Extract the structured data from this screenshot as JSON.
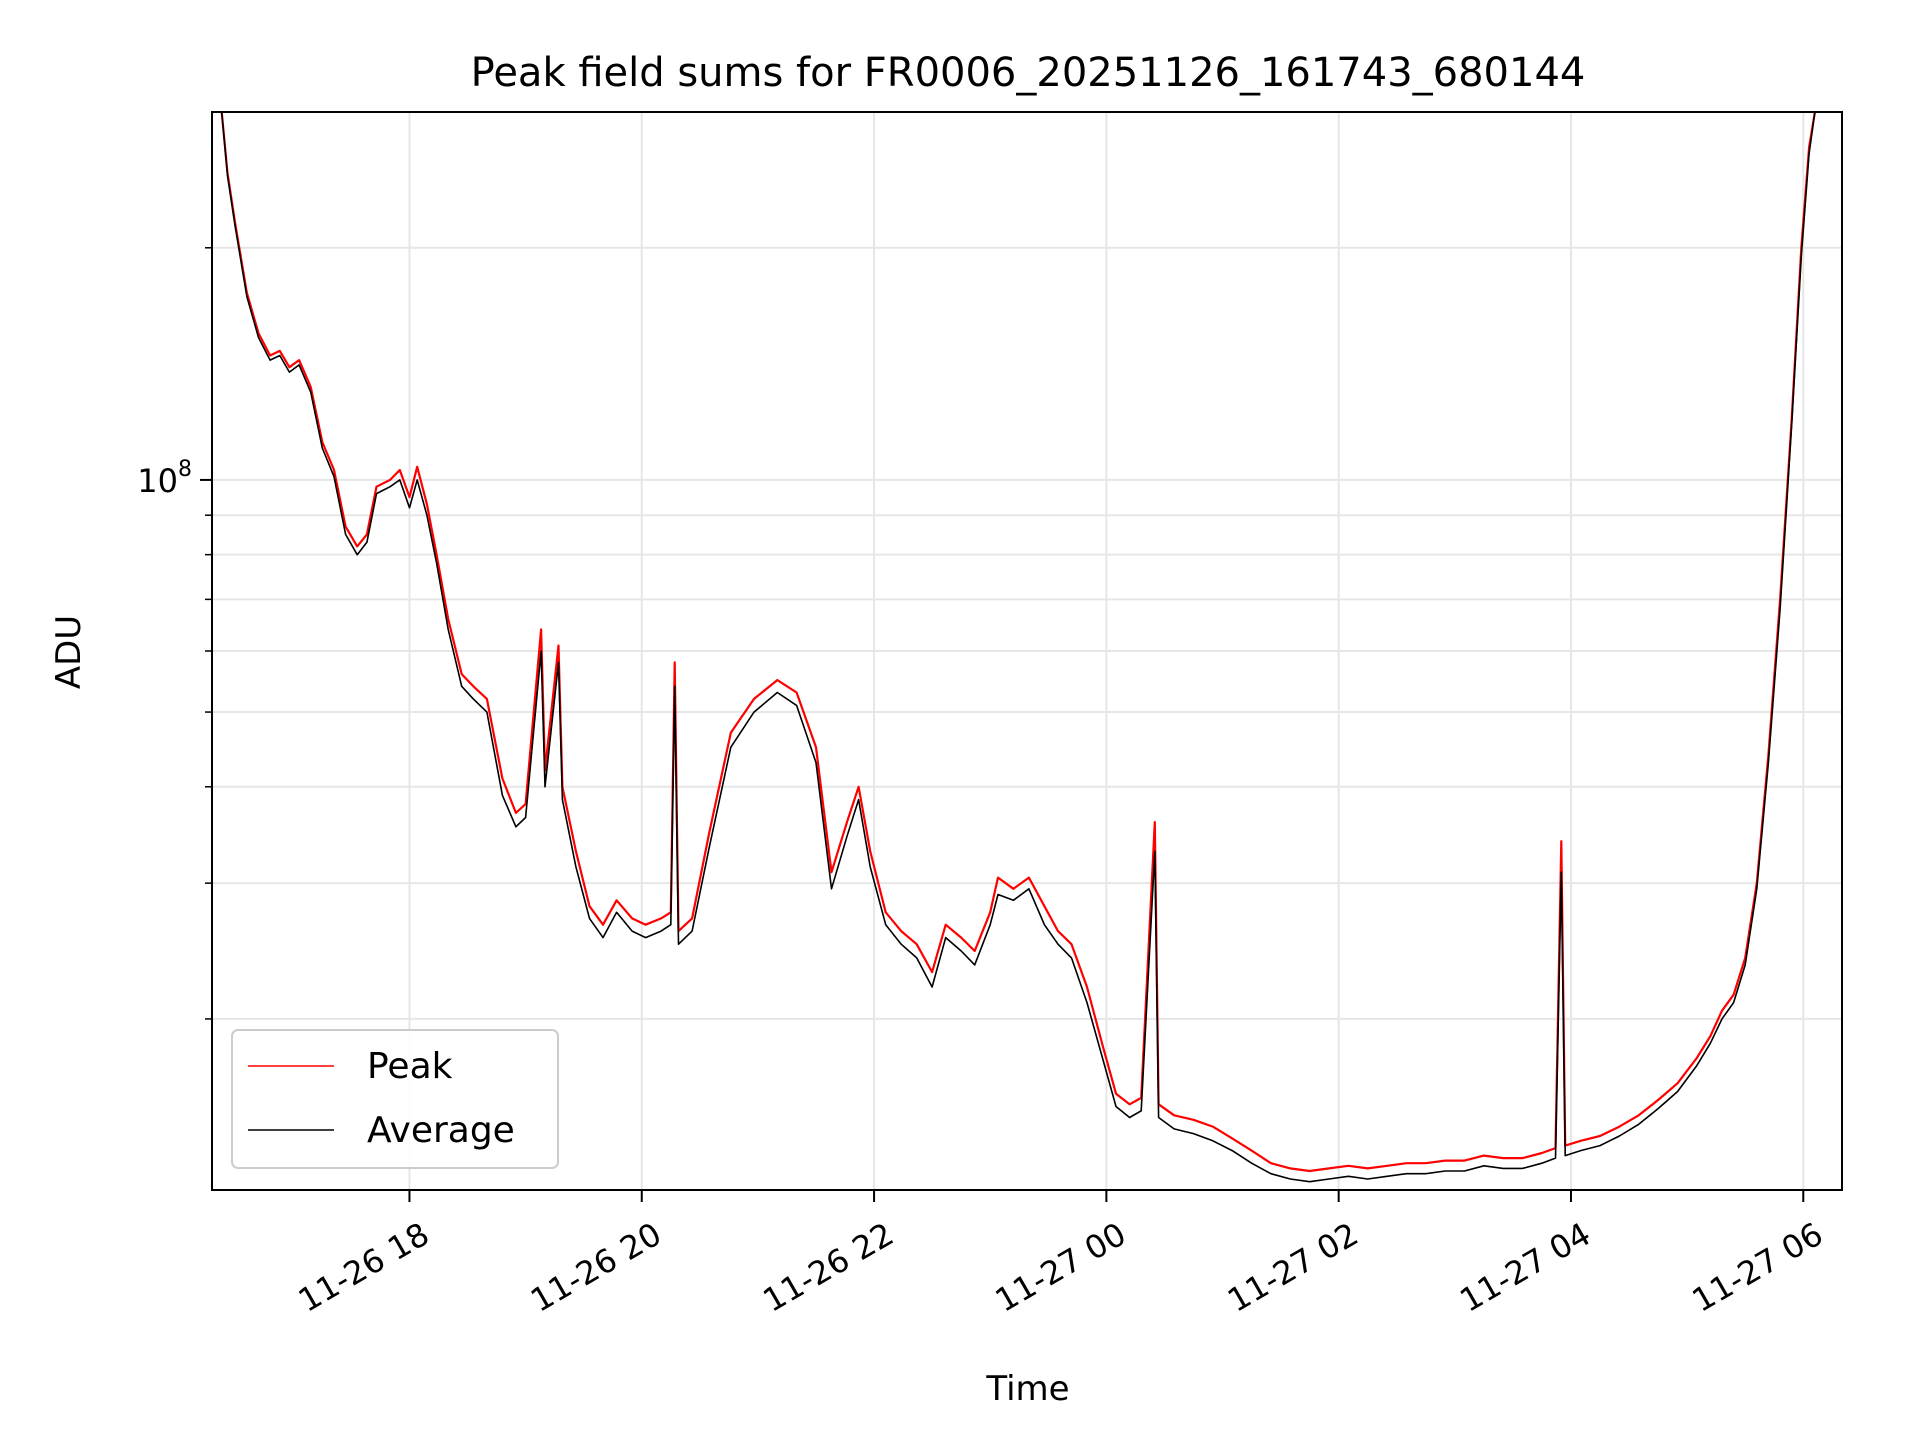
{
  "chart_data": {
    "type": "line",
    "title": "Peak field sums for FR0006_20251126_161743_680144",
    "xlabel": "Time",
    "ylabel": "ADU",
    "yscale": "log",
    "grid": true,
    "legend_placement": "lower-left",
    "xlim": [
      "2025-11-26 16:18",
      "2025-11-27 06:20"
    ],
    "ylim": [
      12000000,
      300000000
    ],
    "x_ticks": [
      {
        "value": "2025-11-26 18:00",
        "label": "11-26 18"
      },
      {
        "value": "2025-11-26 20:00",
        "label": "11-26 20"
      },
      {
        "value": "2025-11-26 22:00",
        "label": "11-26 22"
      },
      {
        "value": "2025-11-27 00:00",
        "label": "11-27 00"
      },
      {
        "value": "2025-11-27 02:00",
        "label": "11-27 02"
      },
      {
        "value": "2025-11-27 04:00",
        "label": "11-27 04"
      },
      {
        "value": "2025-11-27 06:00",
        "label": "11-27 06"
      }
    ],
    "y_major_tick": {
      "value": 100000000,
      "base": "10",
      "exp": "8"
    },
    "y_minor_ticks": [
      20000000,
      30000000,
      40000000,
      50000000,
      60000000,
      70000000,
      80000000,
      90000000,
      200000000
    ],
    "series": [
      {
        "name": "Peak",
        "color": "#ff0000",
        "points": [
          [
            "2025-11-26 16:23",
            300000000
          ],
          [
            "2025-11-26 16:26",
            250000000
          ],
          [
            "2025-11-26 16:30",
            215000000
          ],
          [
            "2025-11-26 16:36",
            175000000
          ],
          [
            "2025-11-26 16:42",
            155000000
          ],
          [
            "2025-11-26 16:48",
            145000000
          ],
          [
            "2025-11-26 16:53",
            147000000
          ],
          [
            "2025-11-26 16:58",
            140000000
          ],
          [
            "2025-11-26 17:03",
            143000000
          ],
          [
            "2025-11-26 17:09",
            132000000
          ],
          [
            "2025-11-26 17:15",
            112000000
          ],
          [
            "2025-11-26 17:21",
            103000000
          ],
          [
            "2025-11-26 17:27",
            87000000
          ],
          [
            "2025-11-26 17:33",
            82000000
          ],
          [
            "2025-11-26 17:38",
            85000000
          ],
          [
            "2025-11-26 17:43",
            98000000
          ],
          [
            "2025-11-26 17:50",
            100000000
          ],
          [
            "2025-11-26 17:55",
            103000000
          ],
          [
            "2025-11-26 18:00",
            95000000
          ],
          [
            "2025-11-26 18:04",
            104000000
          ],
          [
            "2025-11-26 18:09",
            93000000
          ],
          [
            "2025-11-26 18:14",
            80000000
          ],
          [
            "2025-11-26 18:20",
            66000000
          ],
          [
            "2025-11-26 18:27",
            56000000
          ],
          [
            "2025-11-26 18:33",
            54000000
          ],
          [
            "2025-11-26 18:40",
            52000000
          ],
          [
            "2025-11-26 18:48",
            41000000
          ],
          [
            "2025-11-26 18:55",
            37000000
          ],
          [
            "2025-11-26 19:00",
            38000000
          ],
          [
            "2025-11-26 19:08",
            64000000
          ],
          [
            "2025-11-26 19:10",
            42000000
          ],
          [
            "2025-11-26 19:17",
            61000000
          ],
          [
            "2025-11-26 19:19",
            40000000
          ],
          [
            "2025-11-26 19:26",
            33000000
          ],
          [
            "2025-11-26 19:33",
            28000000
          ],
          [
            "2025-11-26 19:40",
            26500000
          ],
          [
            "2025-11-26 19:47",
            28500000
          ],
          [
            "2025-11-26 19:55",
            27000000
          ],
          [
            "2025-11-26 20:02",
            26500000
          ],
          [
            "2025-11-26 20:10",
            27000000
          ],
          [
            "2025-11-26 20:15",
            27500000
          ],
          [
            "2025-11-26 20:17",
            58000000
          ],
          [
            "2025-11-26 20:19",
            26000000
          ],
          [
            "2025-11-26 20:26",
            27000000
          ],
          [
            "2025-11-26 20:35",
            35000000
          ],
          [
            "2025-11-26 20:46",
            47000000
          ],
          [
            "2025-11-26 20:58",
            52000000
          ],
          [
            "2025-11-26 21:10",
            55000000
          ],
          [
            "2025-11-26 21:20",
            53000000
          ],
          [
            "2025-11-26 21:30",
            45000000
          ],
          [
            "2025-11-26 21:38",
            31000000
          ],
          [
            "2025-11-26 21:46",
            36000000
          ],
          [
            "2025-11-26 21:52",
            40000000
          ],
          [
            "2025-11-26 21:58",
            33000000
          ],
          [
            "2025-11-26 22:06",
            27500000
          ],
          [
            "2025-11-26 22:14",
            26000000
          ],
          [
            "2025-11-26 22:22",
            25000000
          ],
          [
            "2025-11-26 22:30",
            23000000
          ],
          [
            "2025-11-26 22:37",
            26500000
          ],
          [
            "2025-11-26 22:45",
            25500000
          ],
          [
            "2025-11-26 22:52",
            24500000
          ],
          [
            "2025-11-26 23:00",
            27500000
          ],
          [
            "2025-11-26 23:04",
            30500000
          ],
          [
            "2025-11-26 23:12",
            29500000
          ],
          [
            "2025-11-26 23:20",
            30500000
          ],
          [
            "2025-11-26 23:28",
            28000000
          ],
          [
            "2025-11-26 23:35",
            26000000
          ],
          [
            "2025-11-26 23:42",
            25000000
          ],
          [
            "2025-11-26 23:50",
            22000000
          ],
          [
            "2025-11-26 23:58",
            18500000
          ],
          [
            "2025-11-27 00:05",
            16000000
          ],
          [
            "2025-11-27 00:12",
            15500000
          ],
          [
            "2025-11-27 00:18",
            15800000
          ],
          [
            "2025-11-27 00:25",
            36000000
          ],
          [
            "2025-11-27 00:27",
            15500000
          ],
          [
            "2025-11-27 00:35",
            15000000
          ],
          [
            "2025-11-27 00:45",
            14800000
          ],
          [
            "2025-11-27 00:55",
            14500000
          ],
          [
            "2025-11-27 01:05",
            14000000
          ],
          [
            "2025-11-27 01:15",
            13500000
          ],
          [
            "2025-11-27 01:25",
            13000000
          ],
          [
            "2025-11-27 01:35",
            12800000
          ],
          [
            "2025-11-27 01:45",
            12700000
          ],
          [
            "2025-11-27 01:55",
            12800000
          ],
          [
            "2025-11-27 02:05",
            12900000
          ],
          [
            "2025-11-27 02:15",
            12800000
          ],
          [
            "2025-11-27 02:25",
            12900000
          ],
          [
            "2025-11-27 02:35",
            13000000
          ],
          [
            "2025-11-27 02:45",
            13000000
          ],
          [
            "2025-11-27 02:55",
            13100000
          ],
          [
            "2025-11-27 03:05",
            13100000
          ],
          [
            "2025-11-27 03:15",
            13300000
          ],
          [
            "2025-11-27 03:25",
            13200000
          ],
          [
            "2025-11-27 03:35",
            13200000
          ],
          [
            "2025-11-27 03:45",
            13400000
          ],
          [
            "2025-11-27 03:52",
            13600000
          ],
          [
            "2025-11-27 03:55",
            34000000
          ],
          [
            "2025-11-27 03:57",
            13700000
          ],
          [
            "2025-11-27 04:05",
            13900000
          ],
          [
            "2025-11-27 04:15",
            14100000
          ],
          [
            "2025-11-27 04:25",
            14500000
          ],
          [
            "2025-11-27 04:35",
            15000000
          ],
          [
            "2025-11-27 04:45",
            15700000
          ],
          [
            "2025-11-27 04:55",
            16500000
          ],
          [
            "2025-11-27 05:05",
            17800000
          ],
          [
            "2025-11-27 05:12",
            19000000
          ],
          [
            "2025-11-27 05:18",
            20500000
          ],
          [
            "2025-11-27 05:24",
            21500000
          ],
          [
            "2025-11-27 05:30",
            24000000
          ],
          [
            "2025-11-27 05:36",
            30000000
          ],
          [
            "2025-11-27 05:42",
            44000000
          ],
          [
            "2025-11-27 05:48",
            70000000
          ],
          [
            "2025-11-27 05:54",
            120000000
          ],
          [
            "2025-11-27 05:59",
            200000000
          ],
          [
            "2025-11-27 06:03",
            270000000
          ],
          [
            "2025-11-27 06:06",
            300000000
          ]
        ]
      },
      {
        "name": "Average",
        "color": "#000000",
        "points": [
          [
            "2025-11-26 16:23",
            300000000
          ],
          [
            "2025-11-26 16:26",
            248000000
          ],
          [
            "2025-11-26 16:30",
            213000000
          ],
          [
            "2025-11-26 16:36",
            173000000
          ],
          [
            "2025-11-26 16:42",
            153000000
          ],
          [
            "2025-11-26 16:48",
            143000000
          ],
          [
            "2025-11-26 16:53",
            145000000
          ],
          [
            "2025-11-26 16:58",
            138000000
          ],
          [
            "2025-11-26 17:03",
            141000000
          ],
          [
            "2025-11-26 17:09",
            130000000
          ],
          [
            "2025-11-26 17:15",
            110000000
          ],
          [
            "2025-11-26 17:21",
            101000000
          ],
          [
            "2025-11-26 17:27",
            85000000
          ],
          [
            "2025-11-26 17:33",
            80000000
          ],
          [
            "2025-11-26 17:38",
            83000000
          ],
          [
            "2025-11-26 17:43",
            96000000
          ],
          [
            "2025-11-26 17:50",
            98000000
          ],
          [
            "2025-11-26 17:55",
            100000000
          ],
          [
            "2025-11-26 18:00",
            92000000
          ],
          [
            "2025-11-26 18:04",
            100000000
          ],
          [
            "2025-11-26 18:09",
            90000000
          ],
          [
            "2025-11-26 18:14",
            78000000
          ],
          [
            "2025-11-26 18:20",
            64000000
          ],
          [
            "2025-11-26 18:27",
            54000000
          ],
          [
            "2025-11-26 18:33",
            52000000
          ],
          [
            "2025-11-26 18:40",
            50000000
          ],
          [
            "2025-11-26 18:48",
            39000000
          ],
          [
            "2025-11-26 18:55",
            35500000
          ],
          [
            "2025-11-26 19:00",
            36500000
          ],
          [
            "2025-11-26 19:08",
            60000000
          ],
          [
            "2025-11-26 19:10",
            40000000
          ],
          [
            "2025-11-26 19:17",
            58000000
          ],
          [
            "2025-11-26 19:19",
            38500000
          ],
          [
            "2025-11-26 19:26",
            31500000
          ],
          [
            "2025-11-26 19:33",
            27000000
          ],
          [
            "2025-11-26 19:40",
            25500000
          ],
          [
            "2025-11-26 19:47",
            27500000
          ],
          [
            "2025-11-26 19:55",
            26000000
          ],
          [
            "2025-11-26 20:02",
            25500000
          ],
          [
            "2025-11-26 20:10",
            26000000
          ],
          [
            "2025-11-26 20:15",
            26500000
          ],
          [
            "2025-11-26 20:17",
            54000000
          ],
          [
            "2025-11-26 20:19",
            25000000
          ],
          [
            "2025-11-26 20:26",
            26000000
          ],
          [
            "2025-11-26 20:35",
            33500000
          ],
          [
            "2025-11-26 20:46",
            45000000
          ],
          [
            "2025-11-26 20:58",
            50000000
          ],
          [
            "2025-11-26 21:10",
            53000000
          ],
          [
            "2025-11-26 21:20",
            51000000
          ],
          [
            "2025-11-26 21:30",
            43000000
          ],
          [
            "2025-11-26 21:38",
            29500000
          ],
          [
            "2025-11-26 21:46",
            34500000
          ],
          [
            "2025-11-26 21:52",
            38500000
          ],
          [
            "2025-11-26 21:58",
            31500000
          ],
          [
            "2025-11-26 22:06",
            26500000
          ],
          [
            "2025-11-26 22:14",
            25000000
          ],
          [
            "2025-11-26 22:22",
            24000000
          ],
          [
            "2025-11-26 22:30",
            22000000
          ],
          [
            "2025-11-26 22:37",
            25500000
          ],
          [
            "2025-11-26 22:45",
            24500000
          ],
          [
            "2025-11-26 22:52",
            23500000
          ],
          [
            "2025-11-26 23:00",
            26500000
          ],
          [
            "2025-11-26 23:04",
            29000000
          ],
          [
            "2025-11-26 23:12",
            28500000
          ],
          [
            "2025-11-26 23:20",
            29500000
          ],
          [
            "2025-11-26 23:28",
            26500000
          ],
          [
            "2025-11-26 23:35",
            25000000
          ],
          [
            "2025-11-26 23:42",
            24000000
          ],
          [
            "2025-11-26 23:50",
            21000000
          ],
          [
            "2025-11-26 23:58",
            17800000
          ],
          [
            "2025-11-27 00:05",
            15400000
          ],
          [
            "2025-11-27 00:12",
            14900000
          ],
          [
            "2025-11-27 00:18",
            15200000
          ],
          [
            "2025-11-27 00:25",
            33000000
          ],
          [
            "2025-11-27 00:27",
            14900000
          ],
          [
            "2025-11-27 00:35",
            14400000
          ],
          [
            "2025-11-27 00:45",
            14200000
          ],
          [
            "2025-11-27 00:55",
            13900000
          ],
          [
            "2025-11-27 01:05",
            13500000
          ],
          [
            "2025-11-27 01:15",
            13000000
          ],
          [
            "2025-11-27 01:25",
            12600000
          ],
          [
            "2025-11-27 01:35",
            12400000
          ],
          [
            "2025-11-27 01:45",
            12300000
          ],
          [
            "2025-11-27 01:55",
            12400000
          ],
          [
            "2025-11-27 02:05",
            12500000
          ],
          [
            "2025-11-27 02:15",
            12400000
          ],
          [
            "2025-11-27 02:25",
            12500000
          ],
          [
            "2025-11-27 02:35",
            12600000
          ],
          [
            "2025-11-27 02:45",
            12600000
          ],
          [
            "2025-11-27 02:55",
            12700000
          ],
          [
            "2025-11-27 03:05",
            12700000
          ],
          [
            "2025-11-27 03:15",
            12900000
          ],
          [
            "2025-11-27 03:25",
            12800000
          ],
          [
            "2025-11-27 03:35",
            12800000
          ],
          [
            "2025-11-27 03:45",
            13000000
          ],
          [
            "2025-11-27 03:52",
            13200000
          ],
          [
            "2025-11-27 03:55",
            31000000
          ],
          [
            "2025-11-27 03:57",
            13300000
          ],
          [
            "2025-11-27 04:05",
            13500000
          ],
          [
            "2025-11-27 04:15",
            13700000
          ],
          [
            "2025-11-27 04:25",
            14100000
          ],
          [
            "2025-11-27 04:35",
            14600000
          ],
          [
            "2025-11-27 04:45",
            15300000
          ],
          [
            "2025-11-27 04:55",
            16100000
          ],
          [
            "2025-11-27 05:05",
            17400000
          ],
          [
            "2025-11-27 05:12",
            18600000
          ],
          [
            "2025-11-27 05:18",
            20000000
          ],
          [
            "2025-11-27 05:24",
            21000000
          ],
          [
            "2025-11-27 05:30",
            23500000
          ],
          [
            "2025-11-27 05:36",
            29500000
          ],
          [
            "2025-11-27 05:42",
            43000000
          ],
          [
            "2025-11-27 05:48",
            68000000
          ],
          [
            "2025-11-27 05:54",
            118000000
          ],
          [
            "2025-11-27 05:59",
            195000000
          ],
          [
            "2025-11-27 06:03",
            265000000
          ],
          [
            "2025-11-27 06:06",
            300000000
          ]
        ]
      }
    ]
  }
}
